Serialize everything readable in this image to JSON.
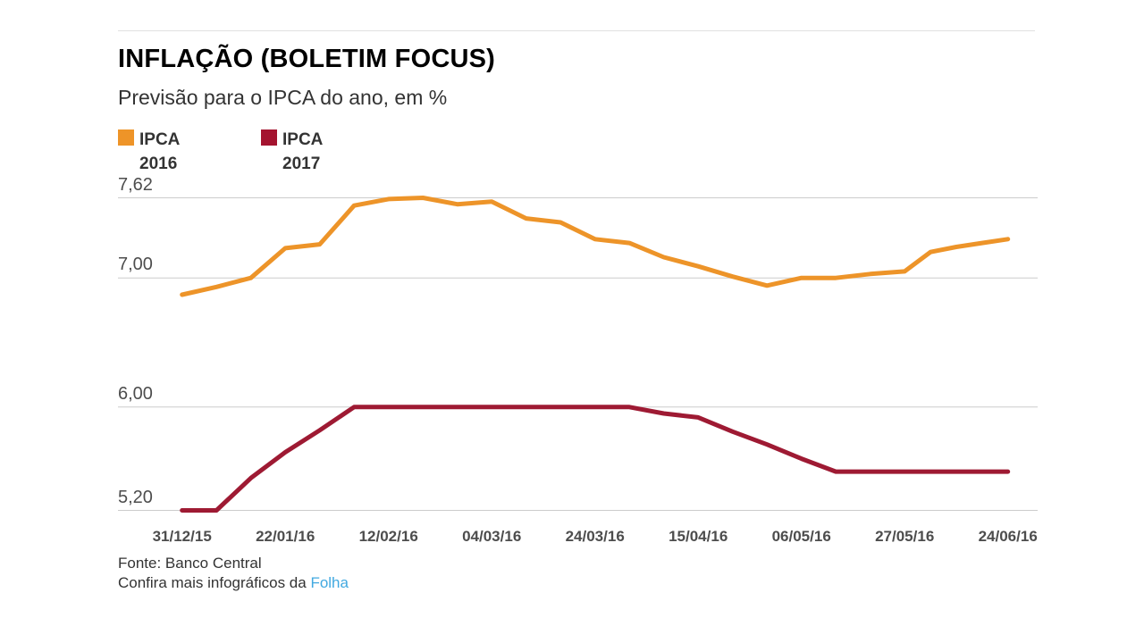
{
  "header": {
    "title": "INFLAÇÃO (BOLETIM FOCUS)",
    "subtitle": "Previsão para o IPCA do ano, em %"
  },
  "legend": {
    "items": [
      {
        "line1": "IPCA",
        "line2": "2016",
        "color": "#ee9428"
      },
      {
        "line1": "IPCA",
        "line2": "2017",
        "color": "#a4132f"
      }
    ]
  },
  "chart_data": {
    "type": "line",
    "title": "INFLAÇÃO (BOLETIM FOCUS)",
    "subtitle": "Previsão para o IPCA do ano, em %",
    "unit": "%",
    "grid": true,
    "legend_position": "top-left",
    "ylim": [
      5.0,
      7.75
    ],
    "y_ticks": [
      {
        "value": 7.62,
        "label": "7,62"
      },
      {
        "value": 7.0,
        "label": "7,00"
      },
      {
        "value": 6.0,
        "label": "6,00"
      },
      {
        "value": 5.2,
        "label": "5,20"
      }
    ],
    "x_tick_labels": [
      "31/12/15",
      "22/01/16",
      "12/02/16",
      "04/03/16",
      "24/03/16",
      "15/04/16",
      "06/05/16",
      "27/05/16",
      "24/06/16"
    ],
    "x_tick_indices": [
      0,
      3,
      6,
      9,
      12,
      15,
      18,
      21,
      25
    ],
    "n_points": 26,
    "series": [
      {
        "name": "IPCA 2016",
        "color": "#ed9429",
        "values": [
          6.87,
          6.93,
          7.0,
          7.23,
          7.26,
          7.56,
          7.61,
          7.62,
          7.57,
          7.59,
          7.46,
          7.43,
          7.3,
          7.27,
          7.16,
          7.09,
          7.01,
          6.94,
          7.0,
          7.0,
          7.03,
          7.05,
          7.2,
          7.24,
          7.27,
          7.3
        ]
      },
      {
        "name": "IPCA 2017",
        "color": "#9e1a33",
        "values": [
          5.2,
          5.2,
          5.45,
          5.65,
          5.82,
          6.0,
          6.0,
          6.0,
          6.0,
          6.0,
          6.0,
          6.0,
          6.0,
          6.0,
          5.95,
          5.92,
          5.81,
          5.71,
          5.6,
          5.5,
          5.5,
          5.5,
          5.5,
          5.5,
          5.5,
          5.5
        ]
      }
    ]
  },
  "footer": {
    "source": "Fonte: Banco Central",
    "cta_prefix": "Confira mais infográficos da ",
    "cta_link": "Folha"
  }
}
